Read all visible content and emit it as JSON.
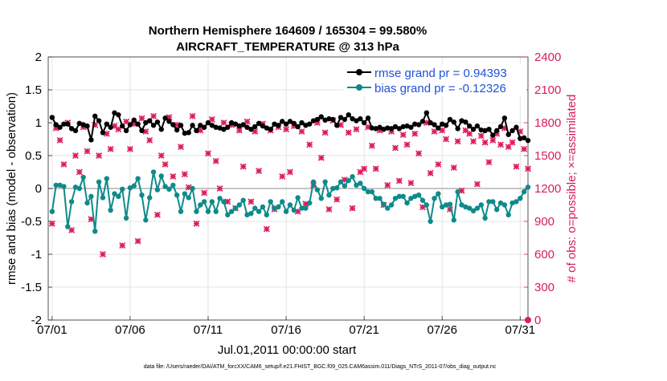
{
  "chart_data": {
    "type": "line",
    "title": "Northern Hemisphere 164609 / 165304 = 99.580%",
    "subtitle": "AIRCRAFT_TEMPERATURE @ 313 hPa",
    "xlabel": "Jul.01,2011 00:00:00 start",
    "ylabel": "rmse and bias (model - observation)",
    "y2label": "# of obs: o=possible; ×=assimilated",
    "footnote": "data file: /Users/raeder/DAI/ATM_forcXX/CAM6_setup/f.e21.FHIST_BGC.f09_025.CAM6assim.011/Diags_NTrS_2011-07/obs_diag_output.nc",
    "xlim": [
      0.75,
      31.5
    ],
    "ylim": [
      -2,
      2
    ],
    "y2lim": [
      0,
      2400
    ],
    "x_ticks": [
      1,
      6,
      11,
      16,
      21,
      26,
      31
    ],
    "x_tick_labels": [
      "07/01",
      "07/06",
      "07/11",
      "07/16",
      "07/21",
      "07/26",
      "07/31"
    ],
    "y_ticks": [
      -2,
      -1.5,
      -1,
      -0.5,
      0,
      0.5,
      1,
      1.5,
      2
    ],
    "y_tick_labels": [
      "-2",
      "-1.5",
      "-1",
      "-0.5",
      "0",
      "0.5",
      "1",
      "1.5",
      "2"
    ],
    "y2_ticks": [
      0,
      300,
      600,
      900,
      1200,
      1500,
      1800,
      2100,
      2400
    ],
    "y2_tick_labels": [
      "0",
      "300",
      "600",
      "900",
      "1200",
      "1500",
      "1800",
      "2100",
      "2400"
    ],
    "grid": true,
    "legend_position": "top-right",
    "zero_line": 0,
    "colors": {
      "rmse": "#000000",
      "bias": "#0f8a8a",
      "obs": "#dc1e5a",
      "legend_text": "#1f52d8",
      "zero_line": "#b4b4b4",
      "right_axis": "#d81b60"
    },
    "x": [
      1.0,
      1.25,
      1.5,
      1.75,
      2.0,
      2.25,
      2.5,
      2.75,
      3.0,
      3.25,
      3.5,
      3.75,
      4.0,
      4.25,
      4.5,
      4.75,
      5.0,
      5.25,
      5.5,
      5.75,
      6.0,
      6.25,
      6.5,
      6.75,
      7.0,
      7.25,
      7.5,
      7.75,
      8.0,
      8.25,
      8.5,
      8.75,
      9.0,
      9.25,
      9.5,
      9.75,
      10.0,
      10.25,
      10.5,
      10.75,
      11.0,
      11.25,
      11.5,
      11.75,
      12.0,
      12.25,
      12.5,
      12.75,
      13.0,
      13.25,
      13.5,
      13.75,
      14.0,
      14.25,
      14.5,
      14.75,
      15.0,
      15.25,
      15.5,
      15.75,
      16.0,
      16.25,
      16.5,
      16.75,
      17.0,
      17.25,
      17.5,
      17.75,
      18.0,
      18.25,
      18.5,
      18.75,
      19.0,
      19.25,
      19.5,
      19.75,
      20.0,
      20.25,
      20.5,
      20.75,
      21.0,
      21.25,
      21.5,
      21.75,
      22.0,
      22.25,
      22.5,
      22.75,
      23.0,
      23.25,
      23.5,
      23.75,
      24.0,
      24.25,
      24.5,
      24.75,
      25.0,
      25.25,
      25.5,
      25.75,
      26.0,
      26.25,
      26.5,
      26.75,
      27.0,
      27.25,
      27.5,
      27.75,
      28.0,
      28.25,
      28.5,
      28.75,
      29.0,
      29.25,
      29.5,
      29.75,
      30.0,
      30.25,
      30.5,
      30.75,
      31.0,
      31.25,
      31.5
    ],
    "series": [
      {
        "name": "rmse grand pr = 0.94393",
        "marker": "circle",
        "values": [
          1.08,
          0.97,
          0.93,
          0.98,
          0.98,
          0.91,
          0.88,
          0.99,
          0.97,
          0.95,
          0.74,
          1.1,
          1.03,
          0.85,
          0.98,
          0.93,
          1.15,
          1.12,
          0.95,
          0.88,
          0.97,
          1.04,
          0.98,
          0.88,
          1.0,
          1.03,
          0.96,
          1.01,
          0.9,
          1.07,
          1.02,
          0.97,
          0.89,
          0.96,
          0.84,
          0.85,
          0.96,
          0.88,
          0.96,
          0.93,
          1.0,
          0.96,
          0.93,
          0.92,
          0.9,
          0.93,
          1.0,
          0.98,
          0.95,
          0.97,
          0.93,
          0.9,
          0.94,
          0.99,
          0.95,
          0.92,
          0.9,
          0.98,
          0.96,
          1.02,
          0.98,
          1.02,
          0.99,
          0.94,
          1.0,
          0.96,
          0.98,
          1.03,
          1.05,
          1.09,
          1.04,
          1.06,
          1.05,
          0.96,
          1.08,
          1.05,
          1.12,
          1.06,
          1.03,
          1.06,
          1.0,
          1.07,
          0.92,
          0.91,
          0.93,
          0.9,
          0.92,
          0.91,
          0.94,
          0.91,
          0.94,
          0.95,
          0.93,
          0.98,
          0.97,
          1.02,
          1.15,
          1.0,
          0.97,
          0.92,
          0.98,
          0.96,
          1.05,
          1.01,
          0.91,
          1.03,
          1.01,
          0.95,
          0.9,
          0.95,
          0.89,
          0.88,
          0.9,
          0.81,
          0.88,
          0.94,
          1.07,
          0.82,
          0.88,
          0.93,
          0.76,
          0.77,
          0.73
        ]
      },
      {
        "name": "bias grand pr = -0.12326",
        "marker": "circle",
        "values": [
          -0.35,
          0.05,
          0.05,
          0.03,
          -0.58,
          -0.2,
          0.02,
          0.0,
          0.17,
          -0.22,
          -0.12,
          -0.65,
          0.1,
          -0.14,
          0.15,
          -0.33,
          -0.08,
          -0.12,
          -0.01,
          -0.45,
          0.01,
          0.04,
          0.15,
          -0.1,
          -0.48,
          -0.14,
          0.25,
          -0.02,
          0.19,
          0.03,
          -0.01,
          0.05,
          -0.1,
          -0.35,
          -0.08,
          -0.14,
          0.0,
          -0.35,
          -0.25,
          -0.2,
          -0.35,
          -0.2,
          -0.35,
          -0.15,
          -0.2,
          -0.4,
          -0.35,
          -0.3,
          -0.25,
          -0.18,
          -0.4,
          -0.38,
          -0.3,
          -0.35,
          -0.28,
          -0.4,
          -0.2,
          -0.3,
          -0.28,
          -0.2,
          -0.35,
          -0.25,
          -0.33,
          -0.14,
          -0.3,
          -0.3,
          -0.22,
          0.1,
          -0.02,
          -0.15,
          0.1,
          -0.1,
          0.0,
          0.01,
          0.1,
          0.04,
          0.12,
          0.18,
          0.05,
          0.08,
          0.0,
          -0.05,
          -0.05,
          -0.15,
          -0.15,
          -0.24,
          -0.3,
          -0.25,
          -0.15,
          -0.12,
          -0.12,
          -0.22,
          -0.15,
          -0.12,
          -0.1,
          -0.18,
          -0.25,
          -0.5,
          -0.15,
          -0.08,
          -0.28,
          -0.25,
          -0.24,
          -0.48,
          -0.05,
          -0.25,
          -0.28,
          -0.3,
          -0.34,
          -0.3,
          -0.25,
          -0.45,
          -0.2,
          -0.2,
          -0.32,
          -0.22,
          -0.25,
          -0.4,
          -0.22,
          -0.2,
          -0.15,
          -0.05,
          0.02
        ]
      }
    ],
    "obs_series": {
      "name": "# of obs (assimilated)",
      "marker": "x",
      "values": [
        880,
        1750,
        1640,
        1420,
        1800,
        820,
        1500,
        1350,
        1760,
        1540,
        920,
        1780,
        1500,
        600,
        1700,
        1560,
        1770,
        1740,
        680,
        1810,
        1560,
        1790,
        720,
        1840,
        1720,
        1640,
        1860,
        960,
        1500,
        1420,
        1850,
        1310,
        1780,
        1580,
        1330,
        1210,
        1860,
        880,
        1730,
        1160,
        1520,
        1830,
        1450,
        1200,
        1800,
        1080,
        1780,
        1020,
        1730,
        1400,
        1810,
        1080,
        1720,
        1360,
        1790,
        830,
        1730,
        1010,
        1760,
        1310,
        1740,
        1350,
        1770,
        990,
        1720,
        1060,
        1600,
        1230,
        1800,
        1480,
        1710,
        1010,
        1820,
        1100,
        1780,
        1280,
        1710,
        1020,
        1740,
        1350,
        1380,
        1760,
        1590,
        1380,
        1730,
        1050,
        1230,
        1720,
        1570,
        1270,
        1690,
        1600,
        1250,
        1700,
        1520,
        1030,
        1800,
        1340,
        1720,
        1420,
        1730,
        1650,
        1010,
        1390,
        1630,
        1180,
        1730,
        1700,
        1630,
        1240,
        1680,
        1620,
        1440,
        1640,
        1700,
        1600,
        1750,
        1580,
        1620,
        1400,
        1720,
        1560,
        1380
      ]
    }
  }
}
